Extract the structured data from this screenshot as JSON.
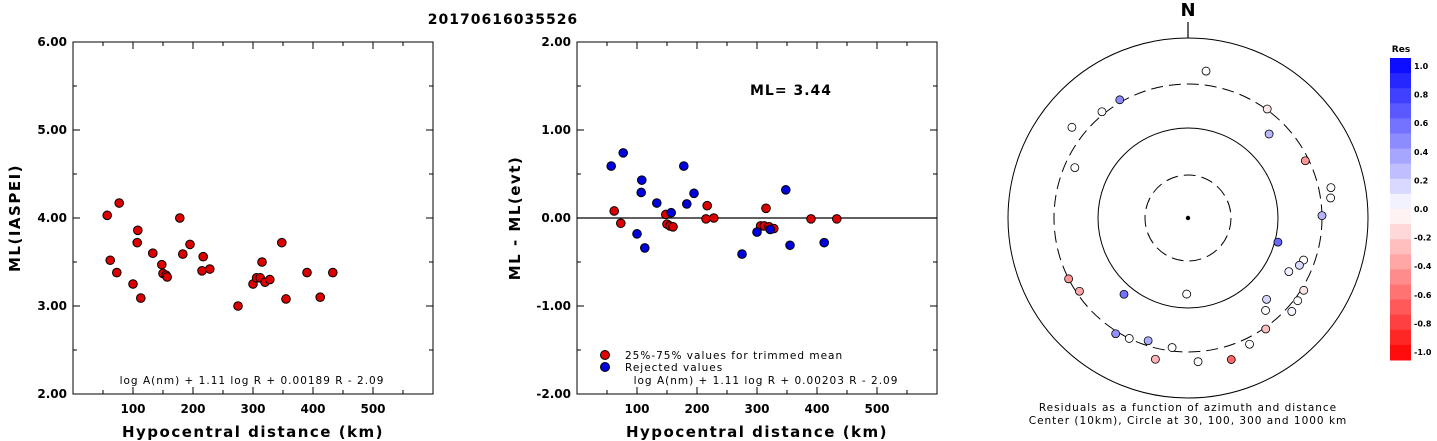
{
  "title": "20170616035526",
  "chart_data": [
    {
      "type": "scatter",
      "xlabel": "Hypocentral distance (km)",
      "ylabel": "ML(IASPEI)",
      "xlim": [
        0,
        600
      ],
      "ylim": [
        2.0,
        6.0
      ],
      "xticks": [
        "100",
        "200",
        "300",
        "400",
        "500"
      ],
      "yticks": [
        "2.00",
        "3.00",
        "4.00",
        "5.00",
        "6.00"
      ],
      "formula": "log A(nm) + 1.11 log R + 0.00189 R - 2.09",
      "series": [
        {
          "color": "#dd0000",
          "points": [
            [
              57,
              4.03
            ],
            [
              62,
              3.52
            ],
            [
              73,
              3.38
            ],
            [
              77,
              4.17
            ],
            [
              100,
              3.25
            ],
            [
              107,
              3.72
            ],
            [
              108,
              3.86
            ],
            [
              113,
              3.09
            ],
            [
              133,
              3.6
            ],
            [
              148,
              3.47
            ],
            [
              150,
              3.37
            ],
            [
              155,
              3.35
            ],
            [
              157,
              3.33
            ],
            [
              178,
              4.0
            ],
            [
              183,
              3.59
            ],
            [
              195,
              3.7
            ],
            [
              215,
              3.4
            ],
            [
              217,
              3.56
            ],
            [
              228,
              3.42
            ],
            [
              275,
              3.0
            ],
            [
              300,
              3.25
            ],
            [
              306,
              3.32
            ],
            [
              312,
              3.32
            ],
            [
              315,
              3.5
            ],
            [
              320,
              3.27
            ],
            [
              328,
              3.3
            ],
            [
              348,
              3.72
            ],
            [
              355,
              3.08
            ],
            [
              390,
              3.38
            ],
            [
              412,
              3.1
            ],
            [
              433,
              3.38
            ]
          ]
        }
      ]
    },
    {
      "type": "scatter",
      "xlabel": "Hypocentral distance (km)",
      "ylabel": "ML - ML(evt)",
      "xlim": [
        0,
        600
      ],
      "ylim": [
        -2.0,
        2.0
      ],
      "xticks": [
        "100",
        "200",
        "300",
        "400",
        "500"
      ],
      "yticks": [
        "-2.00",
        "-1.00",
        "0.00",
        "1.00",
        "2.00"
      ],
      "annotation": "ML= 3.44",
      "formula": "log A(nm) + 1.11 log R + 0.00203 R - 2.09",
      "legend": [
        "25%-75% values for trimmed mean",
        "Rejected values"
      ],
      "series": [
        {
          "name": "25%-75% values for trimmed mean",
          "color": "#dd0000",
          "points": [
            [
              62,
              0.08
            ],
            [
              73,
              -0.06
            ],
            [
              148,
              0.04
            ],
            [
              150,
              -0.07
            ],
            [
              155,
              -0.09
            ],
            [
              160,
              -0.1
            ],
            [
              215,
              -0.01
            ],
            [
              217,
              0.14
            ],
            [
              228,
              0.0
            ],
            [
              306,
              -0.09
            ],
            [
              312,
              -0.09
            ],
            [
              315,
              0.11
            ],
            [
              320,
              -0.1
            ],
            [
              328,
              -0.12
            ],
            [
              390,
              -0.01
            ],
            [
              433,
              -0.01
            ]
          ]
        },
        {
          "name": "Rejected values",
          "color": "#0000dd",
          "points": [
            [
              57,
              0.59
            ],
            [
              77,
              0.74
            ],
            [
              100,
              -0.18
            ],
            [
              107,
              0.29
            ],
            [
              108,
              0.43
            ],
            [
              113,
              -0.34
            ],
            [
              133,
              0.17
            ],
            [
              157,
              0.06
            ],
            [
              178,
              0.59
            ],
            [
              183,
              0.16
            ],
            [
              195,
              0.28
            ],
            [
              275,
              -0.41
            ],
            [
              300,
              -0.16
            ],
            [
              322,
              -0.13
            ],
            [
              348,
              0.32
            ],
            [
              355,
              -0.31
            ],
            [
              412,
              -0.28
            ]
          ]
        }
      ]
    },
    {
      "type": "polar",
      "north_label": "N",
      "caption_line1": "Residuals as a function of azimuth and distance",
      "caption_line2": "Center (10km), Circle at 30, 100, 300 and 1000 km",
      "colorbar_title": "Res",
      "colorbar_ticks": [
        "1.0",
        "0.8",
        "0.6",
        "0.4",
        "0.2",
        "0.0",
        "-0.2",
        "-0.4",
        "-0.6",
        "-0.8",
        "-1.0"
      ],
      "stations": [
        {
          "azimuth": 7,
          "distance_km": 433,
          "residual": -0.01
        },
        {
          "azimuth": 36,
          "distance_km": 306,
          "residual": -0.09
        },
        {
          "azimuth": 44,
          "distance_km": 195,
          "residual": 0.28
        },
        {
          "azimuth": 64,
          "distance_km": 275,
          "residual": -0.41
        },
        {
          "azimuth": 78,
          "distance_km": 412,
          "residual": -0.01
        },
        {
          "azimuth": 82,
          "distance_km": 390,
          "residual": 0.0
        },
        {
          "azimuth": 89,
          "distance_km": 300,
          "residual": 0.29
        },
        {
          "azimuth": 105,
          "distance_km": 108,
          "residual": 0.59
        },
        {
          "azimuth": 110,
          "distance_km": 228,
          "residual": 0.0
        },
        {
          "azimuth": 113,
          "distance_km": 217,
          "residual": 0.14
        },
        {
          "azimuth": 118,
          "distance_km": 183,
          "residual": 0.06
        },
        {
          "azimuth": 122,
          "distance_km": 320,
          "residual": -0.1
        },
        {
          "azimuth": 127,
          "distance_km": 328,
          "residual": 0.0
        },
        {
          "azimuth": 132,
          "distance_km": 348,
          "residual": 0.03
        },
        {
          "azimuth": 136,
          "distance_km": 178,
          "residual": 0.16
        },
        {
          "azimuth": 140,
          "distance_km": 215,
          "residual": -0.01
        },
        {
          "azimuth": 145,
          "distance_km": 312,
          "residual": -0.25
        },
        {
          "azimuth": 154,
          "distance_km": 355,
          "residual": -0.01
        },
        {
          "azimuth": 163,
          "distance_km": 433,
          "residual": -0.6
        },
        {
          "azimuth": 176,
          "distance_km": 390,
          "residual": -0.01
        },
        {
          "azimuth": 181,
          "distance_km": 70,
          "residual": 0.0
        },
        {
          "azimuth": 187,
          "distance_km": 275,
          "residual": 0.0
        },
        {
          "azimuth": 193,
          "distance_km": 400,
          "residual": -0.3
        },
        {
          "azimuth": 198,
          "distance_km": 265,
          "residual": 0.32
        },
        {
          "azimuth": 206,
          "distance_km": 300,
          "residual": 0.0
        },
        {
          "azimuth": 212,
          "distance_km": 320,
          "residual": 0.43
        },
        {
          "azimuth": 220,
          "distance_km": 127,
          "residual": 0.55
        },
        {
          "azimuth": 236,
          "distance_km": 278,
          "residual": -0.34
        },
        {
          "azimuth": 243,
          "distance_km": 300,
          "residual": -0.42
        },
        {
          "azimuth": 294,
          "distance_km": 233,
          "residual": -0.01
        },
        {
          "azimuth": 308,
          "distance_km": 425,
          "residual": 0.0
        },
        {
          "azimuth": 321,
          "distance_km": 322,
          "residual": -0.01
        },
        {
          "azimuth": 330,
          "distance_km": 320,
          "residual": 0.45
        }
      ]
    }
  ]
}
